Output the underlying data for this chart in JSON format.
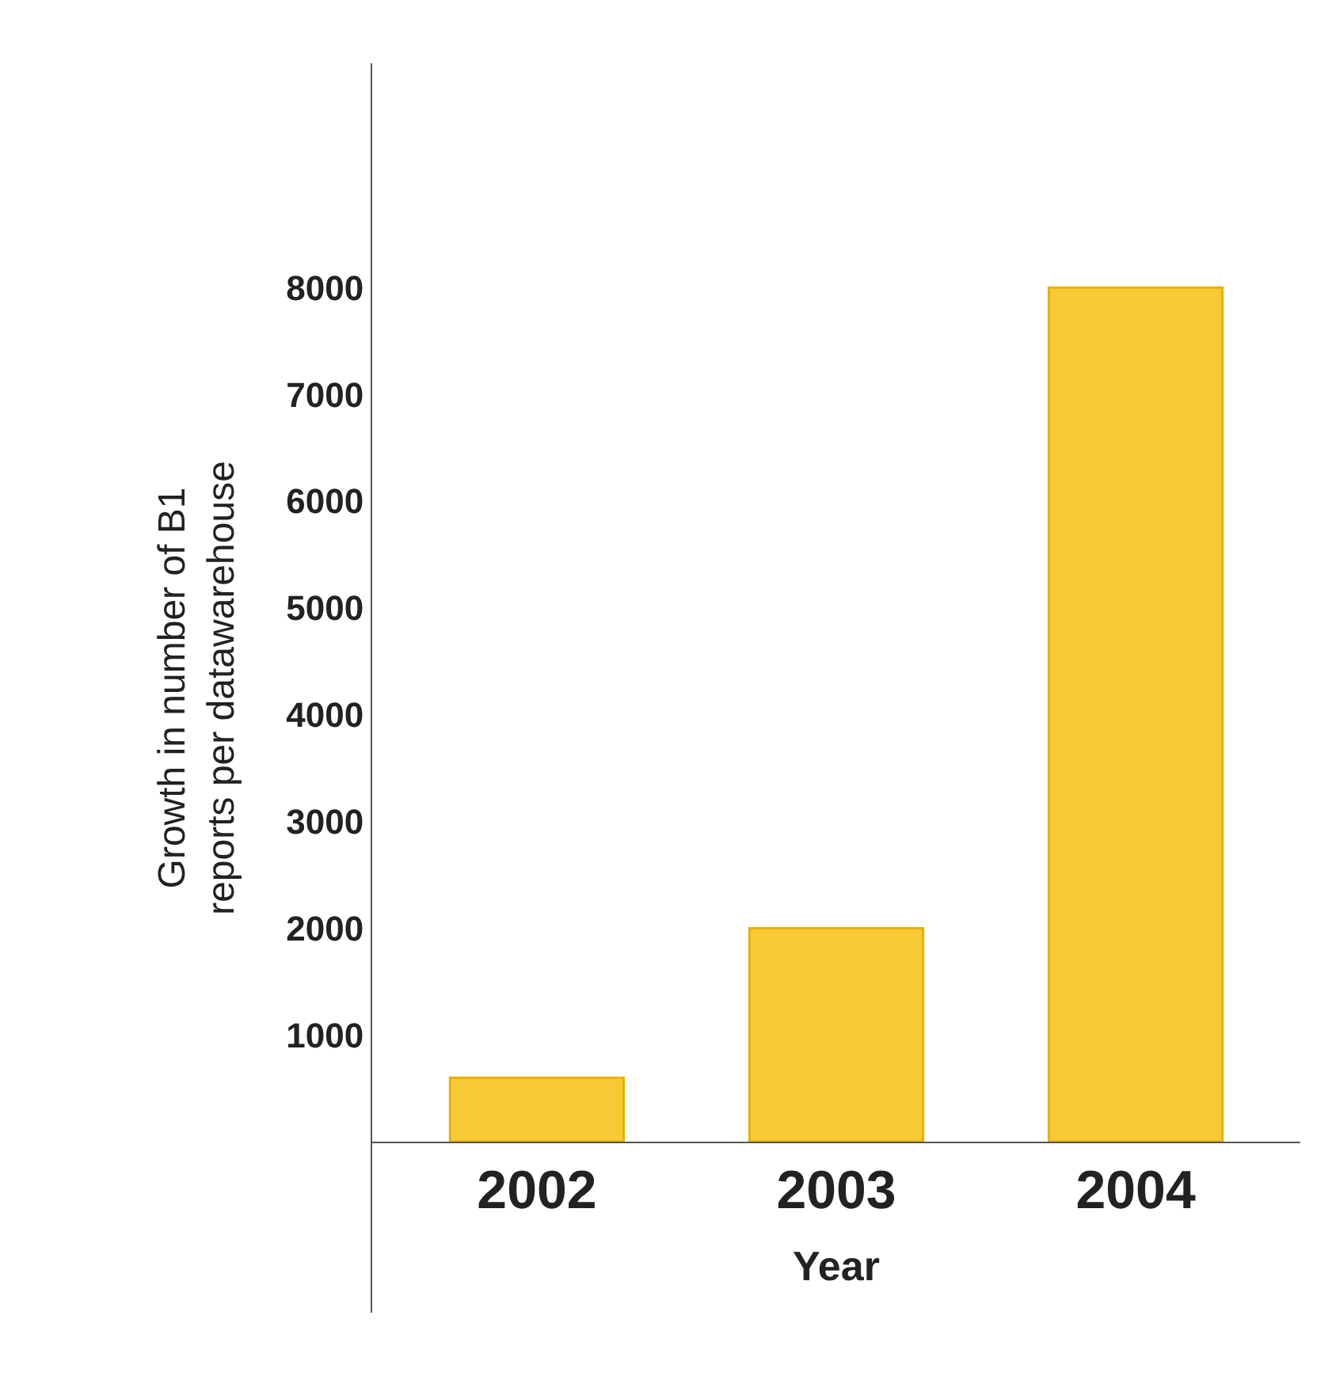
{
  "chart_data": {
    "type": "bar",
    "xlabel": "Year",
    "ylabel": "Growth in number of B1\nreports per datawarehouse",
    "categories": [
      "2002",
      "2003",
      "2004"
    ],
    "values": [
      600,
      2000,
      8000
    ],
    "color": "#f7c935",
    "ylim": [
      -1600,
      10100
    ],
    "yticks": [
      1000,
      2000,
      3000,
      4000,
      5000,
      6000,
      7000,
      8000
    ]
  }
}
